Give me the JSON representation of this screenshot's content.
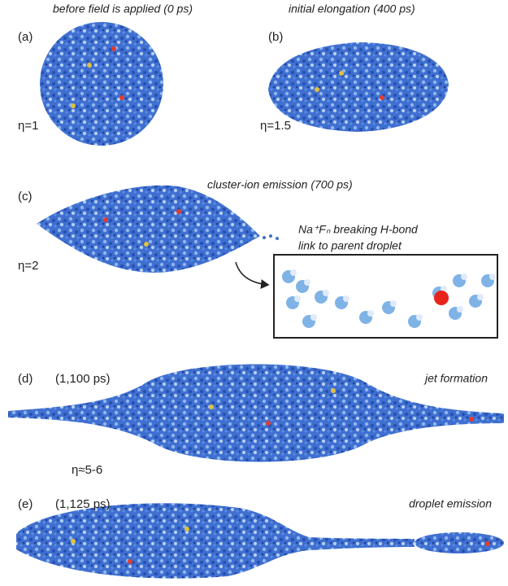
{
  "panels": [
    {
      "tag": "(a)",
      "caption": "before field is applied (0 ps)",
      "eta": "η=1"
    },
    {
      "tag": "(b)",
      "caption": "initial elongation (400 ps)",
      "eta": "η=1.5"
    },
    {
      "tag": "(c)",
      "caption": "cluster-ion emission (700 ps)",
      "eta": "η=2",
      "inset_line1": "Na⁺Fₙ breaking H-bond",
      "inset_line2": "link to parent droplet"
    },
    {
      "tag": "(d)",
      "time": "(1,100 ps)",
      "caption": "jet formation"
    },
    {
      "tag": "(e)",
      "time": "(1,125 ps)",
      "caption": "droplet emission"
    }
  ],
  "shared_eta": "η≈5-6"
}
